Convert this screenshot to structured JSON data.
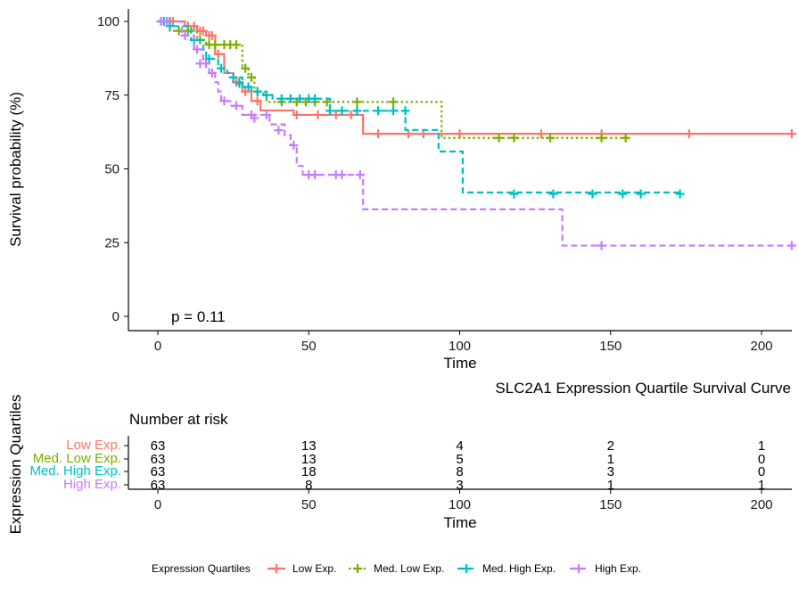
{
  "chart_data": [
    {
      "type": "line",
      "subtype": "kaplan-meier",
      "title": "SLC2A1 Expression Quartile Survival Curve",
      "xlabel": "Time",
      "ylabel": "Survival probability (%)",
      "xlim": [
        0,
        210
      ],
      "ylim": [
        0,
        100
      ],
      "xticks": [
        0,
        50,
        100,
        150,
        200
      ],
      "yticks": [
        0,
        25,
        50,
        75,
        100
      ],
      "grid": false,
      "annotation": "p = 0.11",
      "legend": {
        "title": "Expression Quartiles",
        "position": "bottom"
      },
      "series": [
        {
          "name": "Low Exp.",
          "color": "#F8766D",
          "linestyle": "solid",
          "steps": [
            [
              0,
              100
            ],
            [
              9,
              98.4
            ],
            [
              13,
              96.8
            ],
            [
              16,
              95.2
            ],
            [
              19,
              88.9
            ],
            [
              22,
              82.5
            ],
            [
              25,
              79.4
            ],
            [
              28,
              76.2
            ],
            [
              31,
              73.0
            ],
            [
              34,
              69.8
            ],
            [
              45,
              68.3
            ],
            [
              68,
              61.9
            ],
            [
              210,
              61.9
            ]
          ],
          "censor": [
            [
              3,
              100
            ],
            [
              5,
              100
            ],
            [
              10,
              98.4
            ],
            [
              12,
              98.4
            ],
            [
              14,
              96.8
            ],
            [
              15,
              96.8
            ],
            [
              17,
              95.2
            ],
            [
              18,
              95.2
            ],
            [
              20,
              88.9
            ],
            [
              26,
              79.4
            ],
            [
              27,
              79.4
            ],
            [
              29,
              76.2
            ],
            [
              33,
              73.0
            ],
            [
              46,
              68.3
            ],
            [
              53,
              68.3
            ],
            [
              59,
              68.3
            ],
            [
              64,
              68.3
            ],
            [
              73,
              61.9
            ],
            [
              83,
              61.9
            ],
            [
              88,
              61.9
            ],
            [
              100,
              61.9
            ],
            [
              127,
              61.9
            ],
            [
              147,
              61.9
            ],
            [
              176,
              61.9
            ],
            [
              210,
              61.9
            ]
          ]
        },
        {
          "name": "Med. Low Exp.",
          "color": "#7CAE00",
          "linestyle": "dotted",
          "steps": [
            [
              0,
              100
            ],
            [
              4,
              96.8
            ],
            [
              13,
              93.7
            ],
            [
              16,
              92.1
            ],
            [
              28,
              84.1
            ],
            [
              30,
              81.0
            ],
            [
              32,
              76.2
            ],
            [
              36,
              72.7
            ],
            [
              94,
              60.5
            ],
            [
              155,
              60.5
            ]
          ],
          "censor": [
            [
              4,
              100
            ],
            [
              7,
              96.8
            ],
            [
              10,
              96.8
            ],
            [
              14,
              93.7
            ],
            [
              17,
              92.1
            ],
            [
              19,
              92.1
            ],
            [
              22,
              92.1
            ],
            [
              24,
              92.1
            ],
            [
              26,
              92.1
            ],
            [
              29,
              84.1
            ],
            [
              31,
              81.0
            ],
            [
              33,
              76.2
            ],
            [
              41,
              72.7
            ],
            [
              46,
              72.7
            ],
            [
              49,
              72.7
            ],
            [
              52,
              72.7
            ],
            [
              56,
              72.7
            ],
            [
              66,
              72.7
            ],
            [
              78,
              72.7
            ],
            [
              113,
              60.5
            ],
            [
              118,
              60.5
            ],
            [
              130,
              60.5
            ],
            [
              147,
              60.5
            ],
            [
              155,
              60.5
            ]
          ],
          "label_color": "#7CAE00"
        },
        {
          "name": "Med. High Exp.",
          "color": "#00BFC4",
          "linestyle": "dashed",
          "steps": [
            [
              0,
              100
            ],
            [
              5,
              98.4
            ],
            [
              11,
              93.7
            ],
            [
              15,
              90.5
            ],
            [
              16,
              87.3
            ],
            [
              20,
              84.1
            ],
            [
              23,
              82.5
            ],
            [
              24,
              81.0
            ],
            [
              28,
              77.8
            ],
            [
              31,
              76.2
            ],
            [
              35,
              75.0
            ],
            [
              38,
              73.8
            ],
            [
              57,
              69.7
            ],
            [
              82,
              63.2
            ],
            [
              93,
              55.9
            ],
            [
              101,
              42.0
            ],
            [
              173,
              41.5
            ]
          ],
          "censor": [
            [
              2,
              100
            ],
            [
              4,
              98.4
            ],
            [
              12,
              93.7
            ],
            [
              17,
              87.3
            ],
            [
              21,
              84.1
            ],
            [
              25,
              81.0
            ],
            [
              27,
              79.0
            ],
            [
              30,
              77.8
            ],
            [
              33,
              76.2
            ],
            [
              36,
              75.0
            ],
            [
              41,
              73.8
            ],
            [
              44,
              73.8
            ],
            [
              47,
              73.8
            ],
            [
              50,
              73.8
            ],
            [
              52,
              73.8
            ],
            [
              57,
              69.7
            ],
            [
              61,
              69.7
            ],
            [
              66,
              69.7
            ],
            [
              73,
              69.7
            ],
            [
              78,
              69.7
            ],
            [
              82,
              69.7
            ],
            [
              118,
              41.5
            ],
            [
              131,
              41.5
            ],
            [
              144,
              41.5
            ],
            [
              154,
              41.5
            ],
            [
              160,
              41.5
            ],
            [
              173,
              41.5
            ]
          ]
        },
        {
          "name": "High Exp.",
          "color": "#C77CFF",
          "linestyle": "dashed",
          "steps": [
            [
              0,
              100
            ],
            [
              8,
              95.2
            ],
            [
              12,
              90.5
            ],
            [
              15,
              85.7
            ],
            [
              17,
              82.5
            ],
            [
              19,
              79.4
            ],
            [
              20,
              76.2
            ],
            [
              21,
              73.0
            ],
            [
              24,
              71.4
            ],
            [
              28,
              68.3
            ],
            [
              37,
              65.1
            ],
            [
              42,
              61.4
            ],
            [
              44,
              58.0
            ],
            [
              46,
              51.0
            ],
            [
              48,
              48.0
            ],
            [
              68,
              36.3
            ],
            [
              134,
              24.0
            ],
            [
              210,
              24.0
            ]
          ],
          "censor": [
            [
              1,
              100
            ],
            [
              3,
              100
            ],
            [
              9,
              95.2
            ],
            [
              13,
              90.5
            ],
            [
              14,
              85.7
            ],
            [
              16,
              85.7
            ],
            [
              18,
              82.5
            ],
            [
              22,
              73.0
            ],
            [
              26,
              71.4
            ],
            [
              31,
              68.3
            ],
            [
              32,
              67.2
            ],
            [
              36,
              68.3
            ],
            [
              40,
              63.1
            ],
            [
              45,
              58.0
            ],
            [
              50,
              48.0
            ],
            [
              52,
              48.0
            ],
            [
              59,
              48.0
            ],
            [
              61,
              48.0
            ],
            [
              67,
              48.0
            ],
            [
              147,
              24.0
            ],
            [
              210,
              24.0
            ]
          ]
        }
      ]
    },
    {
      "type": "table",
      "title": "Number at risk",
      "xlabel": "Time",
      "ylabel": "Expression Quartiles",
      "columns": [
        0,
        50,
        100,
        150,
        200
      ],
      "rows": [
        {
          "name": "Low Exp.",
          "color": "#F8766D",
          "values": [
            63,
            13,
            4,
            2,
            1
          ]
        },
        {
          "name": "Med. Low Exp.",
          "color": "#7CAE00",
          "values": [
            63,
            13,
            5,
            1,
            0
          ]
        },
        {
          "name": "Med. High Exp.",
          "color": "#00BFC4",
          "values": [
            63,
            18,
            8,
            3,
            0
          ]
        },
        {
          "name": "High Exp.",
          "color": "#C77CFF",
          "values": [
            63,
            8,
            3,
            1,
            1
          ]
        }
      ]
    }
  ]
}
